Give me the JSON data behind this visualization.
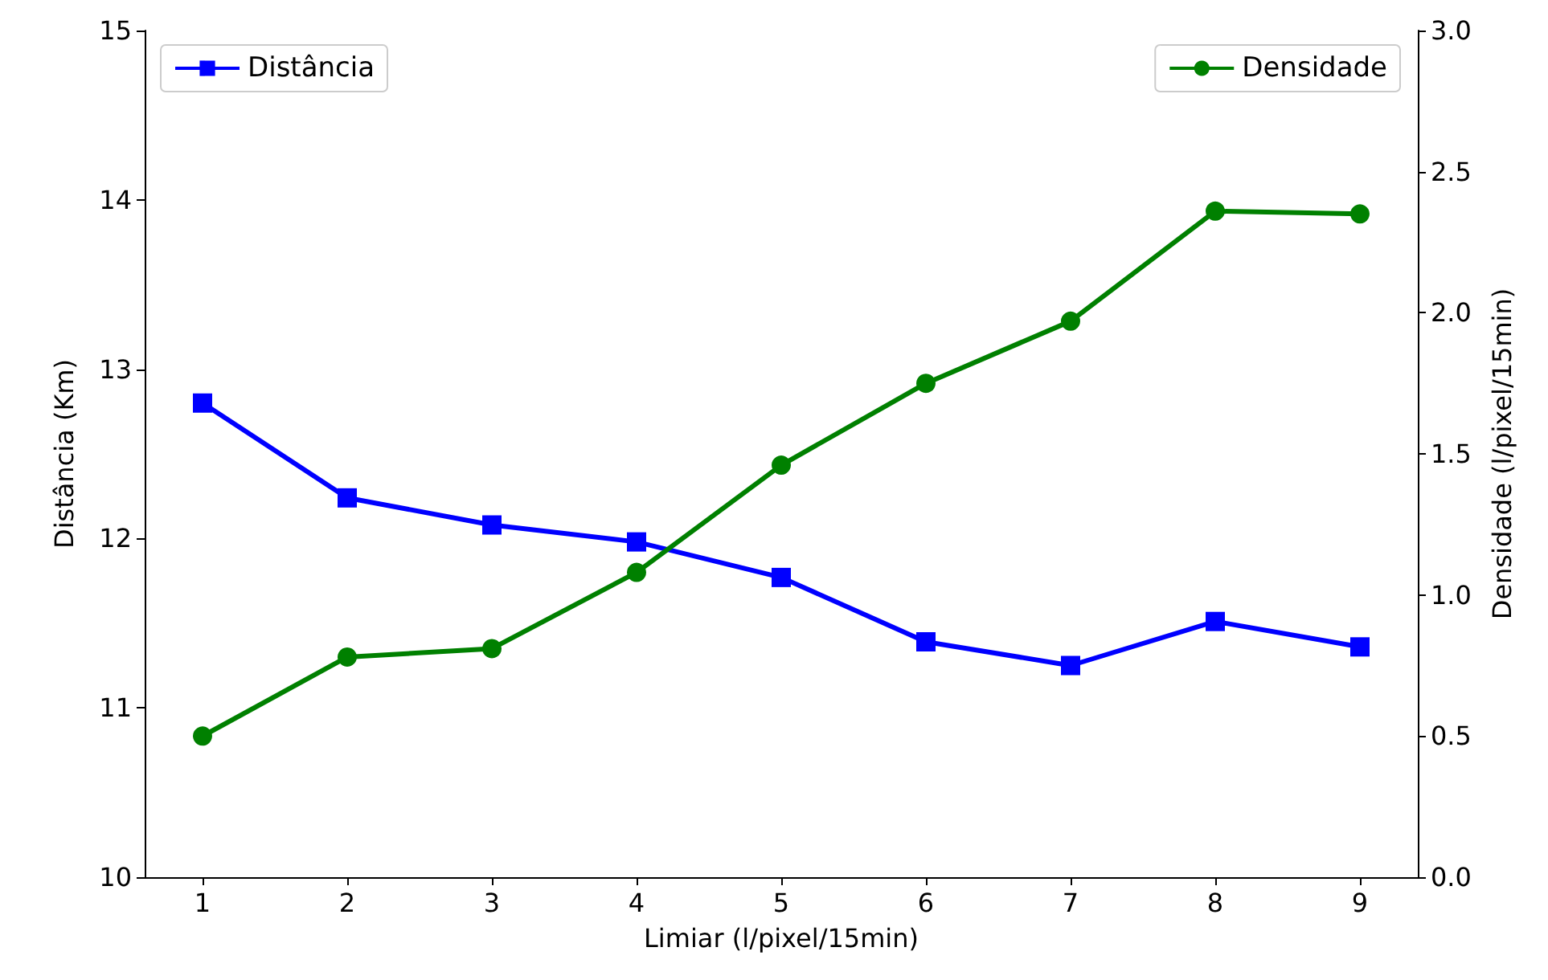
{
  "chart_data": {
    "type": "line",
    "xlabel": "Limiar (l/pixel/15min)",
    "ylabel": "Distância (Km)",
    "y2label": "Densidade (l/pixel/15min)",
    "x": [
      1,
      2,
      3,
      4,
      5,
      6,
      7,
      8,
      9
    ],
    "series": [
      {
        "name": "Distância",
        "color": "#0000ff",
        "marker": "square",
        "values": [
          12.8,
          12.24,
          12.08,
          11.98,
          11.77,
          11.39,
          11.25,
          11.51,
          11.36
        ]
      },
      {
        "name": "Densidade",
        "color": "#008000",
        "marker": "circle",
        "axis": "y2",
        "values": [
          0.5,
          0.78,
          0.81,
          1.08,
          1.46,
          1.75,
          1.97,
          2.36,
          2.35
        ]
      }
    ],
    "xlim": [
      0.6,
      9.4
    ],
    "xticks": [
      1,
      2,
      3,
      4,
      5,
      6,
      7,
      8,
      9
    ],
    "ylim": [
      10,
      15
    ],
    "yticks": [
      10,
      11,
      12,
      13,
      14,
      15
    ],
    "y2lim": [
      0,
      3
    ],
    "y2ticks": [
      {
        "value": 0,
        "label": "0.0"
      },
      {
        "value": 0.5,
        "label": "0.5"
      },
      {
        "value": 1,
        "label": "1.0"
      },
      {
        "value": 1.5,
        "label": "1.5"
      },
      {
        "value": 2,
        "label": "2.0"
      },
      {
        "value": 2.5,
        "label": "2.5"
      },
      {
        "value": 3,
        "label": "3.0"
      }
    ],
    "grid": false,
    "legend": "top",
    "line_style": "solid"
  }
}
